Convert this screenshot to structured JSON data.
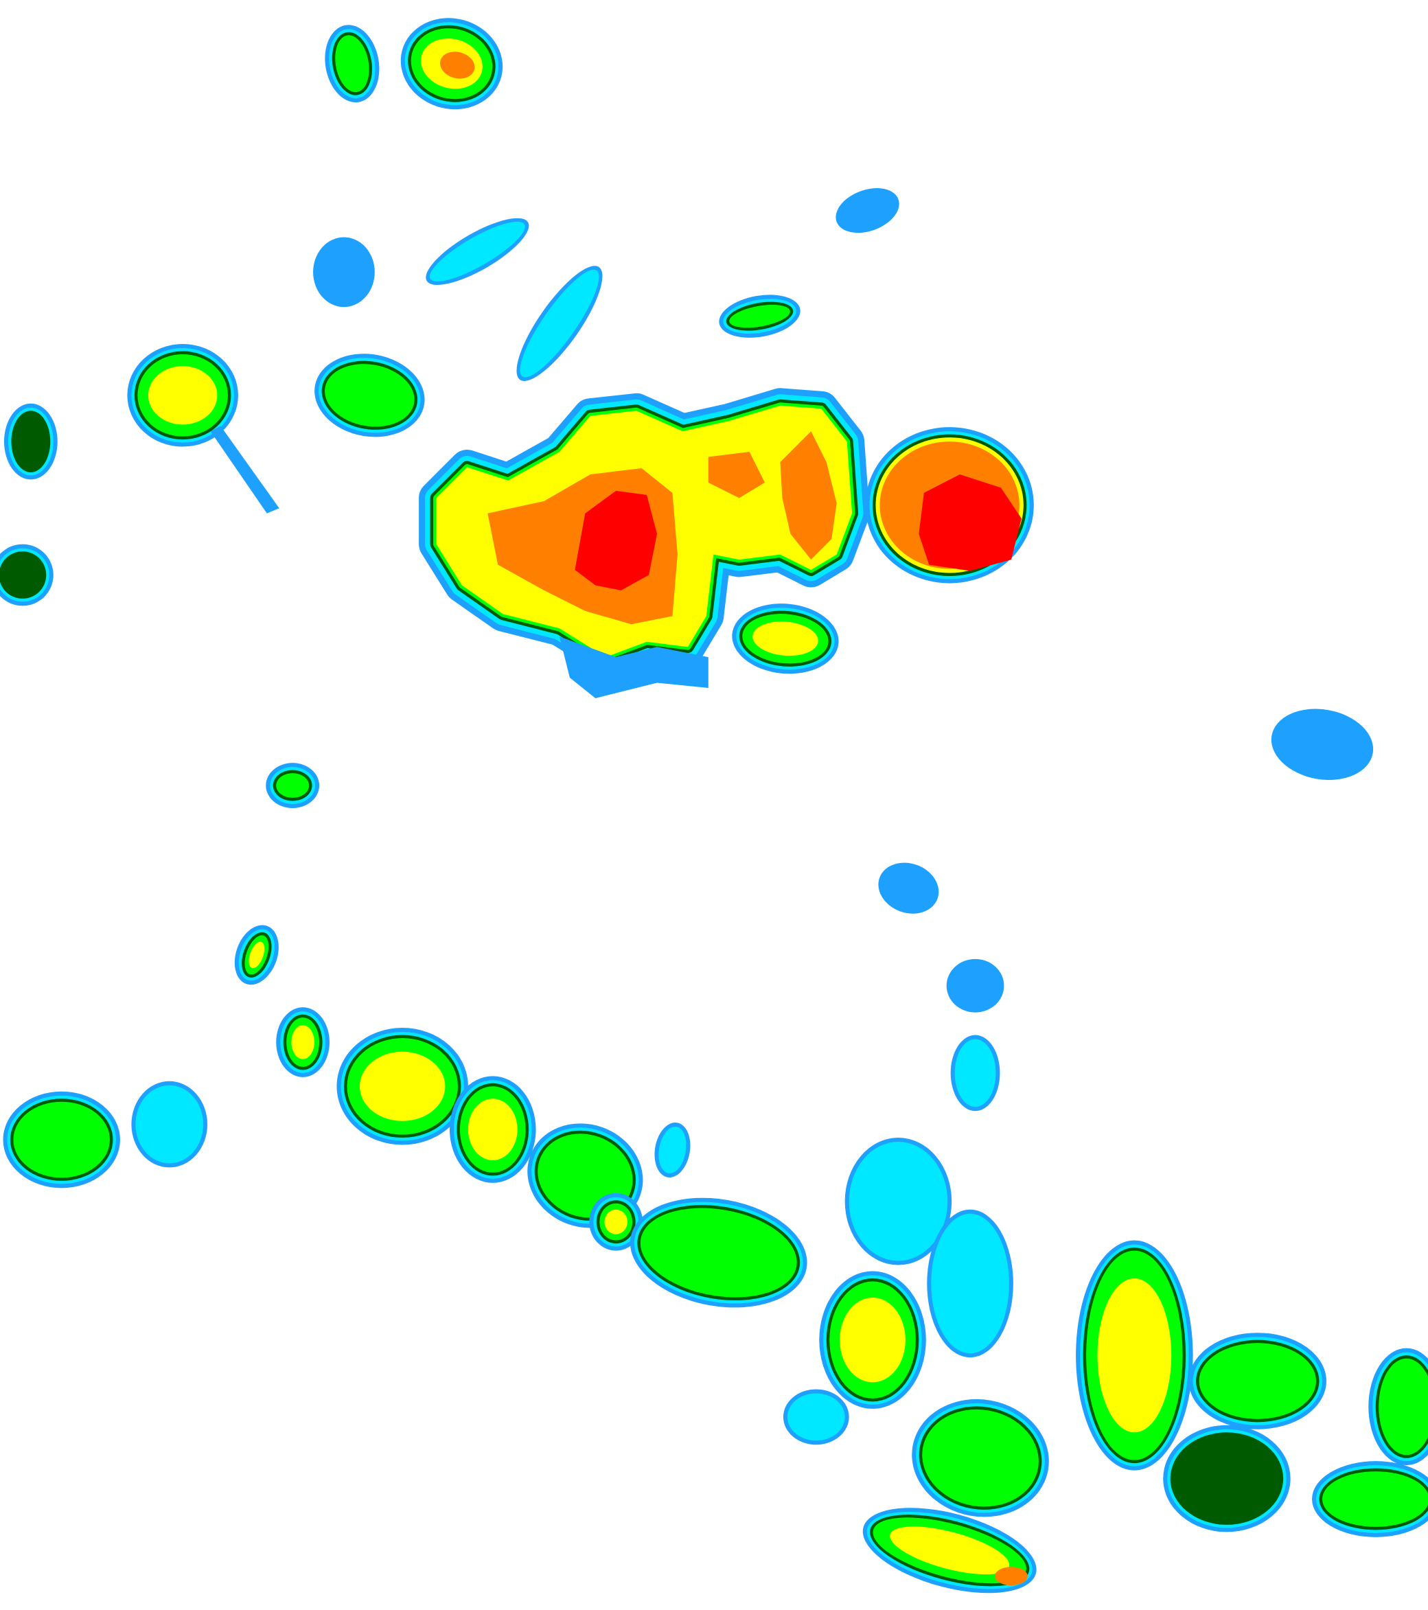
{
  "image": {
    "kind": "precipitation-intensity-map",
    "background": "#ffffff",
    "palette": {
      "level1": "#1ea0ff",
      "level2": "#00e8ff",
      "level3": "#005a00",
      "level4": "#00ff00",
      "level5": "#ffff00",
      "level6": "#ff8000",
      "level7": "#ff0000"
    }
  }
}
